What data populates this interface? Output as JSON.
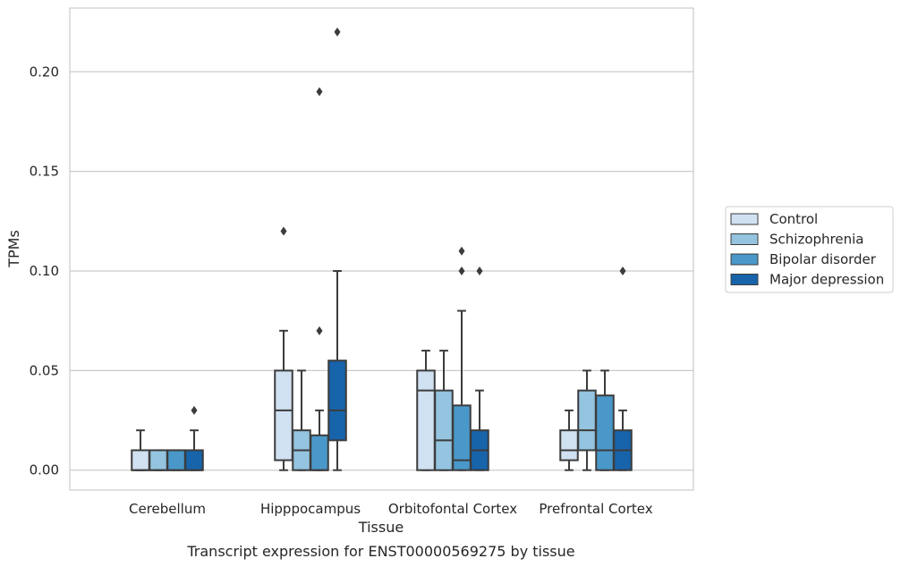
{
  "chart_data": {
    "type": "box",
    "xlabel": "Tissue",
    "ylabel": "TPMs",
    "caption": "Transcript expression for ENST00000569275 by tissue",
    "ylim": [
      -0.01,
      0.232
    ],
    "yticks": [
      0.0,
      0.05,
      0.1,
      0.15,
      0.2
    ],
    "ytick_labels": [
      "0.00",
      "0.05",
      "0.10",
      "0.15",
      "0.20"
    ],
    "grid": true,
    "legend_position": "right",
    "categories": [
      "Cerebellum",
      "Hipppocampus",
      "Orbitofontal Cortex",
      "Prefrontal Cortex"
    ],
    "series": [
      {
        "name": "Control",
        "color": "#d0e1f2",
        "boxes": [
          {
            "whisker_low": 0.0,
            "q1": 0.0,
            "median": 0.0,
            "q3": 0.01,
            "whisker_high": 0.02,
            "outliers": []
          },
          {
            "whisker_low": 0.0,
            "q1": 0.005,
            "median": 0.03,
            "q3": 0.05,
            "whisker_high": 0.07,
            "outliers": [
              0.12
            ]
          },
          {
            "whisker_low": 0.0,
            "q1": 0.0,
            "median": 0.04,
            "q3": 0.05,
            "whisker_high": 0.06,
            "outliers": []
          },
          {
            "whisker_low": 0.0,
            "q1": 0.005,
            "median": 0.01,
            "q3": 0.02,
            "whisker_high": 0.03,
            "outliers": []
          }
        ]
      },
      {
        "name": "Schizophrenia",
        "color": "#94c4df",
        "boxes": [
          {
            "whisker_low": 0.0,
            "q1": 0.0,
            "median": 0.0,
            "q3": 0.01,
            "whisker_high": 0.01,
            "outliers": []
          },
          {
            "whisker_low": 0.0,
            "q1": 0.0,
            "median": 0.01,
            "q3": 0.02,
            "whisker_high": 0.05,
            "outliers": []
          },
          {
            "whisker_low": 0.0,
            "q1": 0.0,
            "median": 0.015,
            "q3": 0.04,
            "whisker_high": 0.06,
            "outliers": []
          },
          {
            "whisker_low": 0.0,
            "q1": 0.01,
            "median": 0.02,
            "q3": 0.04,
            "whisker_high": 0.05,
            "outliers": []
          }
        ]
      },
      {
        "name": "Bipolar disorder",
        "color": "#4a98c9",
        "boxes": [
          {
            "whisker_low": 0.0,
            "q1": 0.0,
            "median": 0.0,
            "q3": 0.01,
            "whisker_high": 0.01,
            "outliers": []
          },
          {
            "whisker_low": 0.0,
            "q1": 0.0,
            "median": 0.0,
            "q3": 0.0175,
            "whisker_high": 0.03,
            "outliers": [
              0.07,
              0.19
            ]
          },
          {
            "whisker_low": 0.0,
            "q1": 0.0,
            "median": 0.005,
            "q3": 0.0325,
            "whisker_high": 0.08,
            "outliers": [
              0.1,
              0.11
            ]
          },
          {
            "whisker_low": 0.0,
            "q1": 0.0,
            "median": 0.01,
            "q3": 0.0375,
            "whisker_high": 0.05,
            "outliers": []
          }
        ]
      },
      {
        "name": "Major depression",
        "color": "#1764ab",
        "boxes": [
          {
            "whisker_low": 0.0,
            "q1": 0.0,
            "median": 0.0,
            "q3": 0.01,
            "whisker_high": 0.02,
            "outliers": [
              0.03
            ]
          },
          {
            "whisker_low": 0.0,
            "q1": 0.015,
            "median": 0.03,
            "q3": 0.055,
            "whisker_high": 0.1,
            "outliers": [
              0.22
            ]
          },
          {
            "whisker_low": 0.0,
            "q1": 0.0,
            "median": 0.01,
            "q3": 0.02,
            "whisker_high": 0.04,
            "outliers": [
              0.1
            ]
          },
          {
            "whisker_low": 0.0,
            "q1": 0.0,
            "median": 0.01,
            "q3": 0.02,
            "whisker_high": 0.03,
            "outliers": [
              0.1
            ]
          }
        ]
      }
    ]
  }
}
